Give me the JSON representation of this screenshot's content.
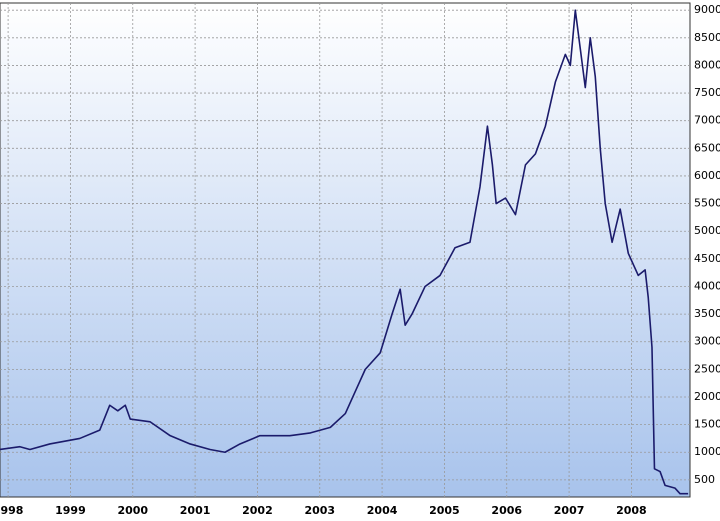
{
  "chart_data": {
    "type": "line",
    "x": [
      1998.37,
      1998.69,
      1998.85,
      1999.17,
      1999.65,
      1999.97,
      2000.13,
      2000.26,
      2000.38,
      2000.46,
      2000.78,
      2001.1,
      2001.42,
      2001.74,
      2001.98,
      2002.22,
      2002.54,
      2003.02,
      2003.35,
      2003.67,
      2003.91,
      2004.07,
      2004.23,
      2004.47,
      2004.66,
      2004.79,
      2004.87,
      2004.98,
      2005.19,
      2005.43,
      2005.67,
      2005.91,
      2006.07,
      2006.19,
      2006.27,
      2006.33,
      2006.48,
      2006.64,
      2006.8,
      2006.96,
      2007.12,
      2007.28,
      2007.44,
      2007.52,
      2007.6,
      2007.68,
      2007.76,
      2007.84,
      2007.92,
      2008.0,
      2008.08,
      2008.19,
      2008.32,
      2008.45,
      2008.61,
      2008.72,
      2008.77,
      2008.83,
      2008.87,
      2008.96,
      2009.04,
      2009.2,
      2009.28,
      2009.41
    ],
    "series": [
      {
        "color": "#1b1b6b",
        "values": [
          1050,
          1100,
          1050,
          1150,
          1250,
          1400,
          1850,
          1750,
          1850,
          1600,
          1550,
          1300,
          1150,
          1050,
          1000,
          1150,
          1300,
          1300,
          1350,
          1450,
          1700,
          2100,
          2500,
          2800,
          3500,
          3950,
          3300,
          3500,
          4000,
          4200,
          4700,
          4800,
          5800,
          6900,
          6200,
          5500,
          5600,
          5300,
          6200,
          6400,
          6900,
          7700,
          8200,
          8000,
          9000,
          8300,
          7600,
          8500,
          7800,
          6500,
          5500,
          4800,
          5400,
          4600,
          4200,
          4300,
          3800,
          2900,
          700,
          650,
          400,
          350,
          250,
          250
        ]
      }
    ],
    "xlim": [
      1998.37,
      2009.44
    ],
    "xticks": [
      {
        "value": 1998.5,
        "label": "1998"
      },
      {
        "value": 1999.5,
        "label": "1999"
      },
      {
        "value": 2000.5,
        "label": "2000"
      },
      {
        "value": 2001.5,
        "label": "2001"
      },
      {
        "value": 2002.5,
        "label": "2002"
      },
      {
        "value": 2003.5,
        "label": "2003"
      },
      {
        "value": 2004.5,
        "label": "2004"
      },
      {
        "value": 2005.5,
        "label": "2005"
      },
      {
        "value": 2006.5,
        "label": "2006"
      },
      {
        "value": 2007.5,
        "label": "2007"
      },
      {
        "value": 2008.5,
        "label": "2008"
      }
    ],
    "ylim": [
      190,
      9130
    ],
    "yticks": [
      500,
      1000,
      1500,
      2000,
      2500,
      3000,
      3500,
      4000,
      4500,
      5000,
      5500,
      6000,
      6500,
      7000,
      7500,
      8000,
      8500,
      9000
    ],
    "grid": true
  }
}
